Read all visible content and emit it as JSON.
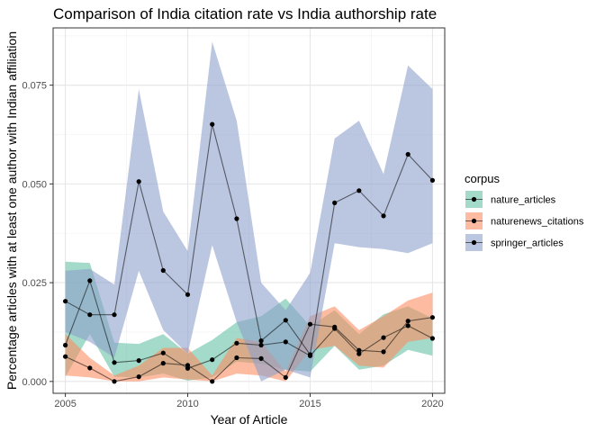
{
  "chart_data": {
    "type": "line",
    "title": "Comparison of India citation rate vs India authorship rate",
    "xlabel": "Year of Article",
    "ylabel": "Percentage articles with at least one author with Indian affiliation",
    "xlim": [
      2004.5,
      2020.5
    ],
    "ylim": [
      -0.003,
      0.0895
    ],
    "x_ticks": [
      2005,
      2010,
      2015,
      2020
    ],
    "x_tick_labels": [
      "2005",
      "2010",
      "2015",
      "2020"
    ],
    "y_ticks": [
      0.0,
      0.025,
      0.05,
      0.075
    ],
    "y_tick_labels": [
      "0.000",
      "0.025",
      "0.050",
      "0.075"
    ],
    "grid": true,
    "legend": {
      "title": "corpus",
      "placement": "right"
    },
    "x": [
      2005,
      2006,
      2007,
      2008,
      2009,
      2010,
      2011,
      2012,
      2013,
      2014,
      2015,
      2016,
      2017,
      2018,
      2019,
      2020
    ],
    "series": [
      {
        "name": "nature_articles",
        "color": "#66c2a5",
        "values": [
          0.0092,
          0.0255,
          0.0048,
          0.0053,
          0.0072,
          0.0033,
          0.0055,
          0.0097,
          0.0092,
          0.01,
          0.0065,
          0.0134,
          0.007,
          0.0111,
          0.0141,
          0.0109
        ],
        "lower": [
          0.0012,
          0.012,
          0.0012,
          0.001,
          0.002,
          0.0002,
          0.001,
          0.005,
          0.0045,
          0.003,
          0.0025,
          0.009,
          0.003,
          0.004,
          0.008,
          0.0065
        ],
        "upper": [
          0.0303,
          0.03,
          0.0098,
          0.0095,
          0.012,
          0.007,
          0.0105,
          0.015,
          0.0165,
          0.021,
          0.014,
          0.018,
          0.012,
          0.017,
          0.019,
          0.016
        ]
      },
      {
        "name": "naturenews_citations",
        "color": "#fc8d62",
        "values": [
          0.0063,
          0.0034,
          0.0,
          0.0012,
          0.0046,
          0.0041,
          0.0,
          0.006,
          0.0058,
          0.001,
          0.0145,
          0.0138,
          0.0079,
          0.0075,
          0.0153,
          0.0162
        ],
        "lower": [
          0.0015,
          0.001,
          0.0,
          0.0,
          0.001,
          0.0005,
          0.0,
          0.002,
          0.0015,
          0.0,
          0.008,
          0.009,
          0.004,
          0.0035,
          0.01,
          0.011
        ],
        "upper": [
          0.012,
          0.006,
          0.0015,
          0.004,
          0.0085,
          0.0085,
          0.0015,
          0.011,
          0.01,
          0.0025,
          0.0165,
          0.019,
          0.013,
          0.0165,
          0.0205,
          0.0225
        ]
      },
      {
        "name": "springer_articles",
        "color": "#8da0cb",
        "values": [
          0.0203,
          0.0169,
          0.0169,
          0.0506,
          0.0281,
          0.022,
          0.0651,
          0.0412,
          0.0103,
          0.0155,
          0.0068,
          0.0452,
          0.0483,
          0.0419,
          0.0575,
          0.0509
        ],
        "lower": [
          0.0125,
          0.01,
          0.006,
          0.028,
          0.013,
          0.007,
          0.0345,
          0.015,
          0.0,
          0.003,
          0.001,
          0.035,
          0.034,
          0.0335,
          0.0325,
          0.035
        ],
        "upper": [
          0.028,
          0.0285,
          0.0245,
          0.074,
          0.043,
          0.033,
          0.086,
          0.066,
          0.025,
          0.018,
          0.0275,
          0.0615,
          0.066,
          0.0525,
          0.08,
          0.074
        ]
      }
    ]
  }
}
